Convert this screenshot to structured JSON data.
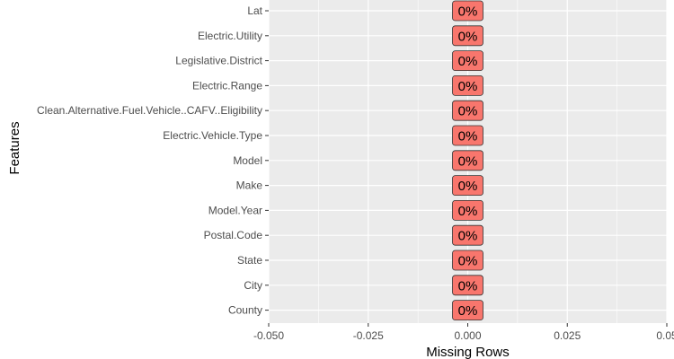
{
  "chart_data": {
    "type": "bar",
    "orientation": "horizontal",
    "categories": [
      "Lat",
      "Electric.Utility",
      "Legislative.District",
      "Electric.Range",
      "Clean.Alternative.Fuel.Vehicle..CAFV..Eligibility",
      "Electric.Vehicle.Type",
      "Model",
      "Make",
      "Model.Year",
      "Postal.Code",
      "State",
      "City",
      "County"
    ],
    "values": [
      0,
      0,
      0,
      0,
      0,
      0,
      0,
      0,
      0,
      0,
      0,
      0,
      0
    ],
    "data_labels": [
      "0%",
      "0%",
      "0%",
      "0%",
      "0%",
      "0%",
      "0%",
      "0%",
      "0%",
      "0%",
      "0%",
      "0%",
      "0%"
    ],
    "xlabel": "Missing Rows",
    "ylabel": "Features",
    "xlim": [
      -0.05,
      0.05
    ],
    "xticks": [
      -0.05,
      -0.025,
      0,
      0.025,
      0.05
    ],
    "xtick_labels": [
      "-0.050",
      "-0.025",
      "0.000",
      "0.025",
      "0.05"
    ],
    "grid": true,
    "label_fill": "#f8766d",
    "panel_background": "#ebebeb",
    "grid_color": "#ffffff"
  }
}
